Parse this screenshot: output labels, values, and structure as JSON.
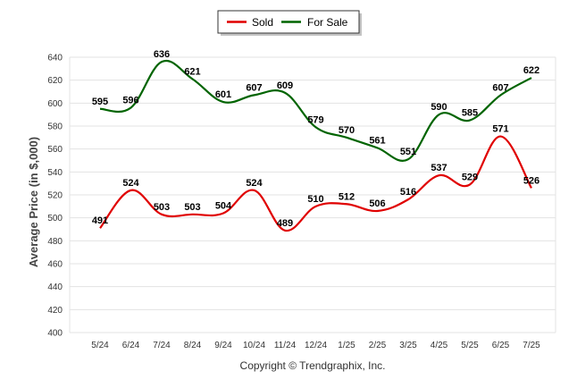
{
  "chart_data": {
    "type": "line",
    "title": "",
    "xlabel": "",
    "ylabel": "Average Price (in $,000)",
    "categories": [
      "5/24",
      "6/24",
      "7/24",
      "8/24",
      "9/24",
      "10/24",
      "11/24",
      "12/24",
      "1/25",
      "2/25",
      "3/25",
      "4/25",
      "5/25",
      "6/25",
      "7/25"
    ],
    "ylim": [
      400,
      640
    ],
    "yticks": [
      "400",
      "420",
      "440",
      "460",
      "480",
      "500",
      "520",
      "540",
      "560",
      "580",
      "600",
      "620",
      "640"
    ],
    "grid": true,
    "legend_position": "top-center",
    "series": [
      {
        "name": "Sold",
        "color": "#e00000",
        "values": [
          491,
          524,
          503,
          503,
          504,
          524,
          489,
          510,
          512,
          506,
          516,
          537,
          529,
          571,
          526
        ]
      },
      {
        "name": "For Sale",
        "color": "#006400",
        "values": [
          595,
          596,
          636,
          621,
          601,
          607,
          609,
          579,
          570,
          561,
          551,
          590,
          585,
          607,
          622
        ]
      }
    ],
    "footer": "Copyright © Trendgraphix, Inc."
  }
}
